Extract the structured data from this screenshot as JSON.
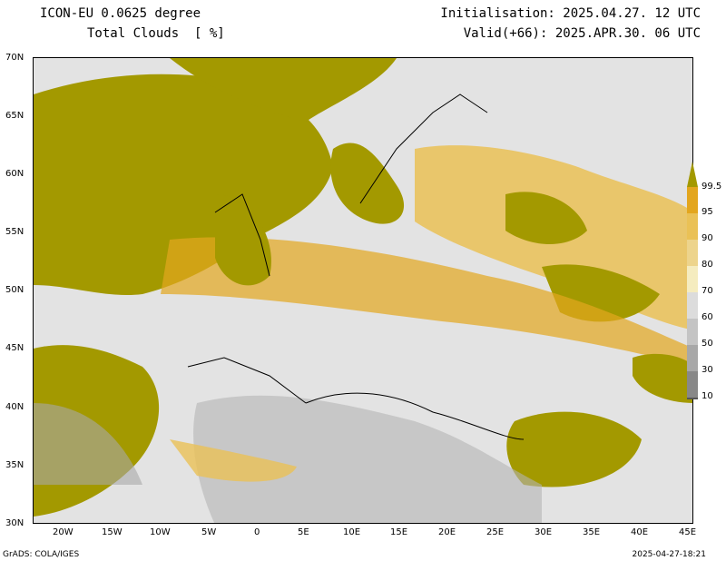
{
  "header": {
    "model": "ICON-EU 0.0625 degree",
    "field": "Total Clouds  [ %]",
    "initialisation": "Initialisation: 2025.04.27. 12 UTC",
    "valid": "Valid(+66): 2025.APR.30. 06 UTC"
  },
  "lat_labels": [
    "70N",
    "65N",
    "60N",
    "55N",
    "50N",
    "45N",
    "40N",
    "35N",
    "30N"
  ],
  "lon_labels": [
    "20W",
    "15W",
    "10W",
    "5W",
    "0",
    "5E",
    "10E",
    "15E",
    "20E",
    "25E",
    "30E",
    "35E",
    "40E",
    "45E"
  ],
  "colorbar": {
    "labels": [
      "99.5",
      "95",
      "90",
      "80",
      "70",
      "60",
      "50",
      "30",
      "10"
    ],
    "colors": [
      "#a39900",
      "#e3a61e",
      "#eac156",
      "#edd48c",
      "#f5ecbf",
      "#dcdcdc",
      "#c4c4c4",
      "#a8a8a8",
      "#888888",
      "#555555"
    ]
  },
  "footer": {
    "left": "GrADS: COLA/IGES",
    "right": "2025-04-27-18:21"
  }
}
